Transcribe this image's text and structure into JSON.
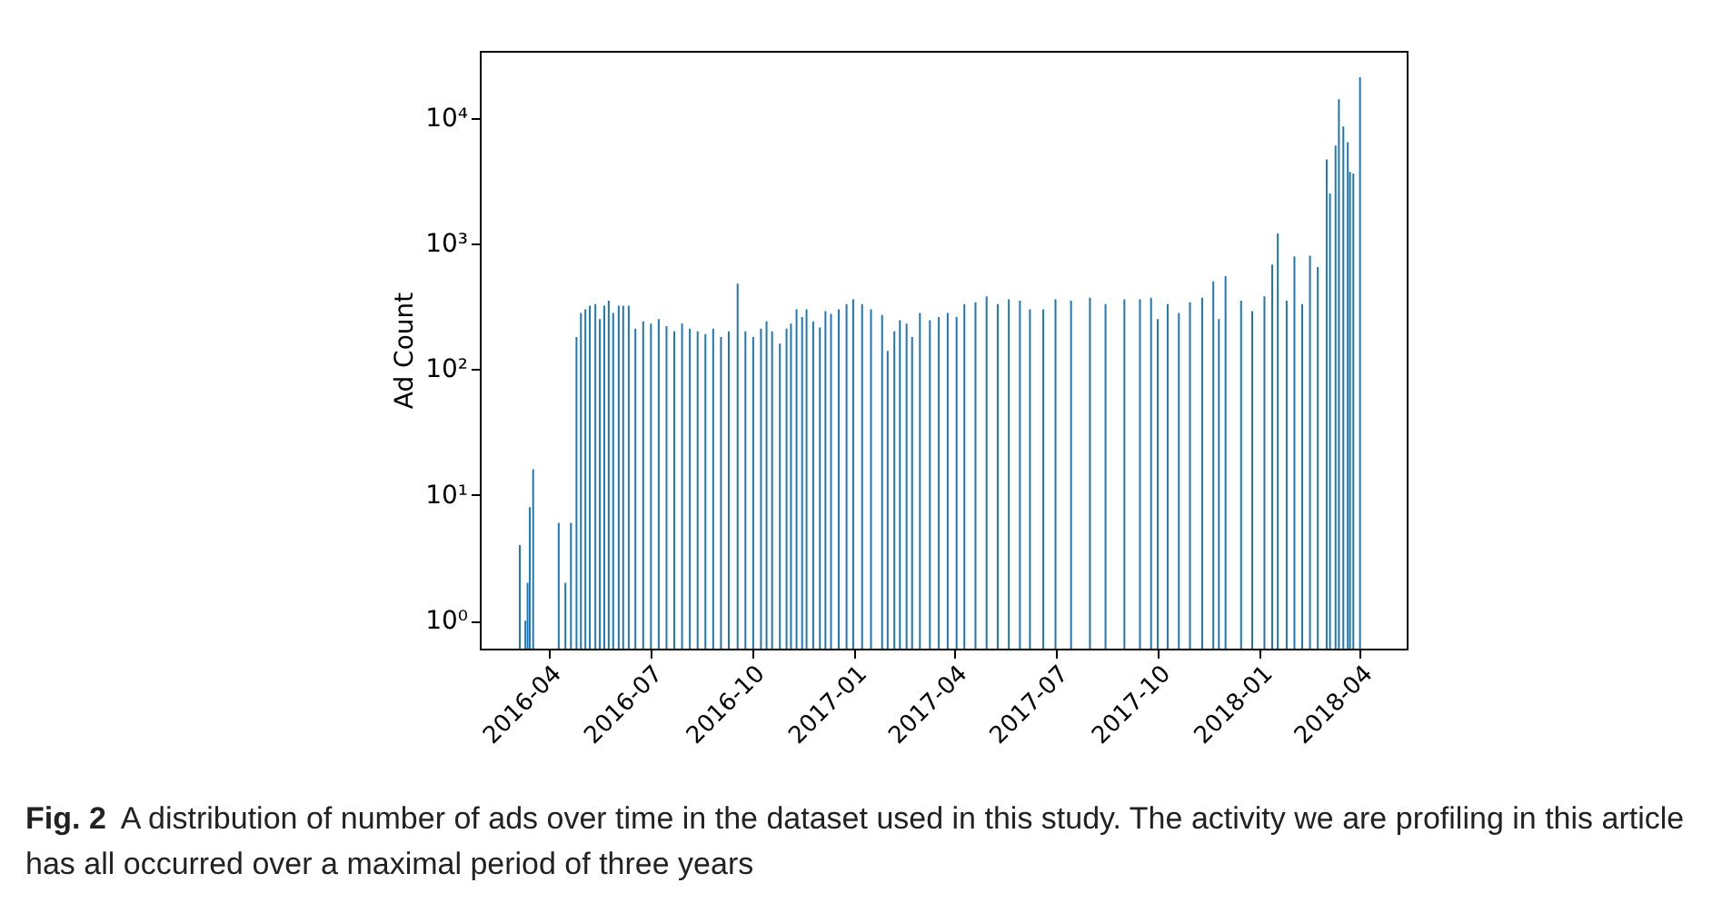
{
  "chart_data": {
    "type": "bar",
    "ylabel": "Ad Count",
    "annotations": [
      "Fig. 2",
      "A distribution of number of ads over time in the dataset used in this study. The activity we are profiling in this article has all occurred over a maximal period of three years"
    ],
    "x": [
      "2016-03-06",
      "2016-03-11",
      "2016-03-13",
      "2016-03-15",
      "2016-03-18",
      "2016-04-10",
      "2016-04-16",
      "2016-04-21",
      "2016-04-26",
      "2016-04-30",
      "2016-05-04",
      "2016-05-08",
      "2016-05-13",
      "2016-05-17",
      "2016-05-21",
      "2016-05-25",
      "2016-05-29",
      "2016-06-03",
      "2016-06-07",
      "2016-06-12",
      "2016-06-18",
      "2016-06-25",
      "2016-07-02",
      "2016-07-09",
      "2016-07-16",
      "2016-07-23",
      "2016-07-30",
      "2016-08-06",
      "2016-08-13",
      "2016-08-20",
      "2016-08-27",
      "2016-09-03",
      "2016-09-10",
      "2016-09-18",
      "2016-09-25",
      "2016-10-02",
      "2016-10-09",
      "2016-10-14",
      "2016-10-19",
      "2016-10-26",
      "2016-11-01",
      "2016-11-05",
      "2016-11-10",
      "2016-11-15",
      "2016-11-19",
      "2016-11-25",
      "2016-12-01",
      "2016-12-06",
      "2016-12-11",
      "2016-12-18",
      "2016-12-25",
      "2016-12-31",
      "2017-01-08",
      "2017-01-16",
      "2017-01-26",
      "2017-01-31",
      "2017-02-06",
      "2017-02-11",
      "2017-02-17",
      "2017-02-22",
      "2017-03-01",
      "2017-03-10",
      "2017-03-18",
      "2017-03-26",
      "2017-04-03",
      "2017-04-10",
      "2017-04-20",
      "2017-04-30",
      "2017-05-10",
      "2017-05-20",
      "2017-05-30",
      "2017-06-08",
      "2017-06-20",
      "2017-07-01",
      "2017-07-15",
      "2017-08-01",
      "2017-08-15",
      "2017-09-01",
      "2017-09-15",
      "2017-09-25",
      "2017-10-01",
      "2017-10-10",
      "2017-10-20",
      "2017-10-30",
      "2017-11-10",
      "2017-11-20",
      "2017-11-25",
      "2017-12-01",
      "2017-12-15",
      "2017-12-25",
      "2018-01-05",
      "2018-01-12",
      "2018-01-17",
      "2018-01-25",
      "2018-02-01",
      "2018-02-08",
      "2018-02-15",
      "2018-02-22",
      "2018-03-02",
      "2018-03-05",
      "2018-03-10",
      "2018-03-13",
      "2018-03-17",
      "2018-03-21",
      "2018-03-23",
      "2018-03-26",
      "2018-04-01"
    ],
    "series": [
      {
        "color": "#1f77b4",
        "values": [
          4,
          1,
          2,
          8,
          16,
          6,
          2,
          6,
          180,
          280,
          300,
          320,
          330,
          250,
          320,
          350,
          280,
          320,
          320,
          320,
          210,
          240,
          230,
          250,
          220,
          200,
          230,
          210,
          200,
          190,
          210,
          180,
          200,
          480,
          200,
          180,
          210,
          240,
          200,
          160,
          210,
          230,
          300,
          260,
          300,
          240,
          215,
          290,
          275,
          300,
          330,
          360,
          330,
          300,
          270,
          140,
          200,
          245,
          230,
          180,
          280,
          245,
          260,
          280,
          260,
          330,
          340,
          380,
          330,
          360,
          350,
          300,
          300,
          360,
          350,
          370,
          330,
          360,
          360,
          370,
          250,
          330,
          280,
          340,
          370,
          500,
          250,
          550,
          350,
          290,
          380,
          680,
          1200,
          350,
          790,
          330,
          800,
          650,
          4650,
          2500,
          6000,
          14000,
          8500,
          6400,
          3700,
          3600,
          21000
        ]
      }
    ],
    "xlim": [
      "2016-01-30",
      "2018-05-13"
    ],
    "xticks": [
      {
        "value": "2016-04-01",
        "label": "2016-04"
      },
      {
        "value": "2016-07-01",
        "label": "2016-07"
      },
      {
        "value": "2016-10-01",
        "label": "2016-10"
      },
      {
        "value": "2017-01-01",
        "label": "2017-01"
      },
      {
        "value": "2017-04-01",
        "label": "2017-04"
      },
      {
        "value": "2017-07-01",
        "label": "2017-07"
      },
      {
        "value": "2017-10-01",
        "label": "2017-10"
      },
      {
        "value": "2018-01-01",
        "label": "2018-01"
      },
      {
        "value": "2018-04-01",
        "label": "2018-04"
      }
    ],
    "ylim": [
      0.6,
      34000
    ],
    "log": true,
    "yticks": [
      {
        "value": 1,
        "label": "10⁰"
      },
      {
        "value": 10,
        "label": "10¹"
      },
      {
        "value": 100,
        "label": "10²"
      },
      {
        "value": 1000,
        "label": "10³"
      },
      {
        "value": 10000,
        "label": "10⁴"
      }
    ],
    "grid": false
  }
}
